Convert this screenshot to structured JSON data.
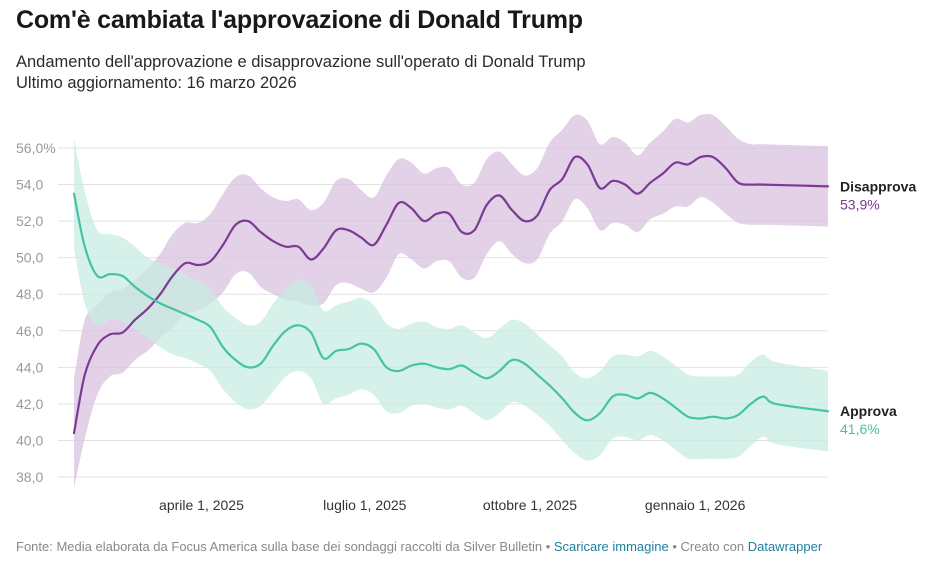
{
  "title": "Com'è cambiata l'approvazione di Donald Trump",
  "subtitle_line1": "Andamento dell'approvazione e disapprovazione sull'operato di Donald Trump",
  "subtitle_line2": "Ultimo aggiornamento: 16 marzo 2026",
  "footer": {
    "source": "Fonte: Media elaborata da Focus America sulla base dei sondaggi raccolti da Silver Bulletin",
    "sep": " • ",
    "download": "Scaricare immagine",
    "created": "Creato con ",
    "tool": "Datawrapper"
  },
  "colors": {
    "disapprove_line": "#7b3a94",
    "disapprove_band": "#d8c0de",
    "approve_line": "#45c3a4",
    "approve_band": "#c6ece1",
    "grid": "#e2e2e2"
  },
  "chart_data": {
    "type": "line",
    "x_type": "date",
    "x_range": [
      "2025-01-20",
      "2026-03-16"
    ],
    "ylim": [
      38,
      56
    ],
    "y_ticks": [
      {
        "value": 38,
        "label": "38,0"
      },
      {
        "value": 40,
        "label": "40,0"
      },
      {
        "value": 42,
        "label": "42,0"
      },
      {
        "value": 44,
        "label": "44,0"
      },
      {
        "value": 46,
        "label": "46,0"
      },
      {
        "value": 48,
        "label": "48,0"
      },
      {
        "value": 50,
        "label": "50,0"
      },
      {
        "value": 52,
        "label": "52,0"
      },
      {
        "value": 54,
        "label": "54,0"
      },
      {
        "value": 56,
        "label": "56,0%"
      }
    ],
    "x_ticks": [
      {
        "date": "2025-04-01",
        "label": "aprile 1, 2025"
      },
      {
        "date": "2025-07-01",
        "label": "luglio 1, 2025"
      },
      {
        "date": "2025-10-01",
        "label": "ottobre 1, 2025"
      },
      {
        "date": "2026-01-01",
        "label": "gennaio 1, 2026"
      }
    ],
    "grid": true,
    "series": [
      {
        "name": "Disapprova",
        "last_label": "53,9%",
        "color": "#7b3a94",
        "band_color": "#d8c0de",
        "points": [
          {
            "date": "2025-01-20",
            "value": 40.4,
            "low": 37.4,
            "high": 43.4
          },
          {
            "date": "2025-01-26",
            "value": 43.6,
            "low": 40.1,
            "high": 46.6
          },
          {
            "date": "2025-02-02",
            "value": 45.2,
            "low": 42.5,
            "high": 47.4
          },
          {
            "date": "2025-02-09",
            "value": 45.8,
            "low": 43.5,
            "high": 48.1
          },
          {
            "date": "2025-02-16",
            "value": 45.9,
            "low": 43.7,
            "high": 48.3
          },
          {
            "date": "2025-02-23",
            "value": 46.6,
            "low": 44.4,
            "high": 48.8
          },
          {
            "date": "2025-03-02",
            "value": 47.2,
            "low": 44.9,
            "high": 49.4
          },
          {
            "date": "2025-03-09",
            "value": 48.0,
            "low": 45.6,
            "high": 50.2
          },
          {
            "date": "2025-03-16",
            "value": 49.0,
            "low": 46.2,
            "high": 51.3
          },
          {
            "date": "2025-03-23",
            "value": 49.7,
            "low": 46.9,
            "high": 51.9
          },
          {
            "date": "2025-03-30",
            "value": 49.6,
            "low": 47.1,
            "high": 51.9
          },
          {
            "date": "2025-04-06",
            "value": 49.8,
            "low": 47.5,
            "high": 52.4
          },
          {
            "date": "2025-04-13",
            "value": 50.7,
            "low": 48.1,
            "high": 53.5
          },
          {
            "date": "2025-04-20",
            "value": 51.8,
            "low": 49.1,
            "high": 54.4
          },
          {
            "date": "2025-04-27",
            "value": 52.0,
            "low": 49.2,
            "high": 54.5
          },
          {
            "date": "2025-05-04",
            "value": 51.4,
            "low": 48.4,
            "high": 53.8
          },
          {
            "date": "2025-05-11",
            "value": 50.9,
            "low": 48.0,
            "high": 53.3
          },
          {
            "date": "2025-05-18",
            "value": 50.6,
            "low": 47.7,
            "high": 53.1
          },
          {
            "date": "2025-05-25",
            "value": 50.6,
            "low": 47.6,
            "high": 53.2
          },
          {
            "date": "2025-06-01",
            "value": 49.9,
            "low": 47.4,
            "high": 52.6
          },
          {
            "date": "2025-06-08",
            "value": 50.5,
            "low": 47.5,
            "high": 53.0
          },
          {
            "date": "2025-06-15",
            "value": 51.5,
            "low": 48.5,
            "high": 54.2
          },
          {
            "date": "2025-06-22",
            "value": 51.5,
            "low": 48.6,
            "high": 54.3
          },
          {
            "date": "2025-06-29",
            "value": 51.1,
            "low": 48.3,
            "high": 53.7
          },
          {
            "date": "2025-07-06",
            "value": 50.7,
            "low": 48.1,
            "high": 53.3
          },
          {
            "date": "2025-07-13",
            "value": 51.8,
            "low": 48.9,
            "high": 54.5
          },
          {
            "date": "2025-07-20",
            "value": 53.0,
            "low": 50.2,
            "high": 55.4
          },
          {
            "date": "2025-07-27",
            "value": 52.7,
            "low": 49.9,
            "high": 55.2
          },
          {
            "date": "2025-08-03",
            "value": 52.0,
            "low": 49.4,
            "high": 54.6
          },
          {
            "date": "2025-08-10",
            "value": 52.4,
            "low": 49.8,
            "high": 54.9
          },
          {
            "date": "2025-08-17",
            "value": 52.4,
            "low": 49.8,
            "high": 54.9
          },
          {
            "date": "2025-08-24",
            "value": 51.4,
            "low": 48.9,
            "high": 54.0
          },
          {
            "date": "2025-08-31",
            "value": 51.5,
            "low": 48.9,
            "high": 54.1
          },
          {
            "date": "2025-09-07",
            "value": 52.9,
            "low": 50.2,
            "high": 55.4
          },
          {
            "date": "2025-09-14",
            "value": 53.4,
            "low": 50.9,
            "high": 55.8
          },
          {
            "date": "2025-09-21",
            "value": 52.6,
            "low": 50.2,
            "high": 55.1
          },
          {
            "date": "2025-09-28",
            "value": 52.0,
            "low": 49.7,
            "high": 54.5
          },
          {
            "date": "2025-10-05",
            "value": 52.3,
            "low": 49.9,
            "high": 54.9
          },
          {
            "date": "2025-10-12",
            "value": 53.7,
            "low": 51.3,
            "high": 56.3
          },
          {
            "date": "2025-10-19",
            "value": 54.3,
            "low": 52.0,
            "high": 57.0
          },
          {
            "date": "2025-10-26",
            "value": 55.5,
            "low": 53.2,
            "high": 57.8
          },
          {
            "date": "2025-11-02",
            "value": 55.1,
            "low": 52.7,
            "high": 57.5
          },
          {
            "date": "2025-11-09",
            "value": 53.8,
            "low": 51.5,
            "high": 56.2
          },
          {
            "date": "2025-11-16",
            "value": 54.2,
            "low": 51.9,
            "high": 56.6
          },
          {
            "date": "2025-11-23",
            "value": 54.0,
            "low": 51.8,
            "high": 56.3
          },
          {
            "date": "2025-11-30",
            "value": 53.5,
            "low": 51.4,
            "high": 55.6
          },
          {
            "date": "2025-12-07",
            "value": 54.1,
            "low": 52.1,
            "high": 56.3
          },
          {
            "date": "2025-12-14",
            "value": 54.6,
            "low": 52.4,
            "high": 56.9
          },
          {
            "date": "2025-12-21",
            "value": 55.2,
            "low": 52.8,
            "high": 57.6
          },
          {
            "date": "2025-12-28",
            "value": 55.1,
            "low": 52.8,
            "high": 57.4
          },
          {
            "date": "2026-01-04",
            "value": 55.5,
            "low": 53.3,
            "high": 57.8
          },
          {
            "date": "2026-01-11",
            "value": 55.5,
            "low": 53.0,
            "high": 57.8
          },
          {
            "date": "2026-01-18",
            "value": 54.9,
            "low": 52.4,
            "high": 57.2
          },
          {
            "date": "2026-01-25",
            "value": 54.1,
            "low": 51.9,
            "high": 56.5
          },
          {
            "date": "2026-02-01",
            "value": 54.0,
            "low": 51.8,
            "high": 56.2
          },
          {
            "date": "2026-02-08",
            "value": 54.0,
            "low": 51.8,
            "high": 56.2
          },
          {
            "date": "2026-03-16",
            "value": 53.9,
            "low": 51.7,
            "high": 56.1
          }
        ]
      },
      {
        "name": "Approva",
        "last_label": "41,6%",
        "color": "#45c3a4",
        "band_color": "#c6ece1",
        "points": [
          {
            "date": "2025-01-20",
            "value": 53.5,
            "low": 50.5,
            "high": 56.5
          },
          {
            "date": "2025-01-26",
            "value": 50.6,
            "low": 47.5,
            "high": 53.6
          },
          {
            "date": "2025-02-02",
            "value": 49.0,
            "low": 46.3,
            "high": 51.5
          },
          {
            "date": "2025-02-09",
            "value": 49.1,
            "low": 46.6,
            "high": 51.3
          },
          {
            "date": "2025-02-16",
            "value": 49.0,
            "low": 46.5,
            "high": 51.1
          },
          {
            "date": "2025-02-23",
            "value": 48.4,
            "low": 46.1,
            "high": 50.6
          },
          {
            "date": "2025-03-02",
            "value": 47.9,
            "low": 45.6,
            "high": 50.0
          },
          {
            "date": "2025-03-09",
            "value": 47.5,
            "low": 45.1,
            "high": 49.7
          },
          {
            "date": "2025-03-16",
            "value": 47.2,
            "low": 44.7,
            "high": 49.4
          },
          {
            "date": "2025-03-23",
            "value": 46.9,
            "low": 44.5,
            "high": 49.1
          },
          {
            "date": "2025-03-30",
            "value": 46.6,
            "low": 44.2,
            "high": 48.7
          },
          {
            "date": "2025-04-06",
            "value": 46.2,
            "low": 43.8,
            "high": 48.3
          },
          {
            "date": "2025-04-13",
            "value": 45.1,
            "low": 42.8,
            "high": 47.3
          },
          {
            "date": "2025-04-20",
            "value": 44.4,
            "low": 42.1,
            "high": 46.7
          },
          {
            "date": "2025-04-27",
            "value": 44.0,
            "low": 41.7,
            "high": 46.3
          },
          {
            "date": "2025-05-04",
            "value": 44.2,
            "low": 41.9,
            "high": 46.5
          },
          {
            "date": "2025-05-11",
            "value": 45.2,
            "low": 42.7,
            "high": 47.5
          },
          {
            "date": "2025-05-18",
            "value": 46.0,
            "low": 43.5,
            "high": 48.3
          },
          {
            "date": "2025-05-25",
            "value": 46.3,
            "low": 43.8,
            "high": 48.8
          },
          {
            "date": "2025-06-01",
            "value": 45.9,
            "low": 43.4,
            "high": 48.5
          },
          {
            "date": "2025-06-08",
            "value": 44.5,
            "low": 42.0,
            "high": 47.1
          },
          {
            "date": "2025-06-15",
            "value": 44.9,
            "low": 42.3,
            "high": 47.4
          },
          {
            "date": "2025-06-22",
            "value": 45.0,
            "low": 42.5,
            "high": 47.6
          },
          {
            "date": "2025-06-29",
            "value": 45.3,
            "low": 42.8,
            "high": 47.8
          },
          {
            "date": "2025-07-06",
            "value": 45.0,
            "low": 42.5,
            "high": 47.4
          },
          {
            "date": "2025-07-13",
            "value": 44.0,
            "low": 41.6,
            "high": 46.4
          },
          {
            "date": "2025-07-20",
            "value": 43.8,
            "low": 41.5,
            "high": 46.1
          },
          {
            "date": "2025-07-27",
            "value": 44.1,
            "low": 41.9,
            "high": 46.4
          },
          {
            "date": "2025-08-03",
            "value": 44.2,
            "low": 42.0,
            "high": 46.5
          },
          {
            "date": "2025-08-10",
            "value": 44.0,
            "low": 41.8,
            "high": 46.2
          },
          {
            "date": "2025-08-17",
            "value": 43.9,
            "low": 41.7,
            "high": 46.1
          },
          {
            "date": "2025-08-24",
            "value": 44.1,
            "low": 41.9,
            "high": 46.3
          },
          {
            "date": "2025-08-31",
            "value": 43.7,
            "low": 41.5,
            "high": 45.9
          },
          {
            "date": "2025-09-07",
            "value": 43.4,
            "low": 41.1,
            "high": 45.6
          },
          {
            "date": "2025-09-14",
            "value": 43.8,
            "low": 41.5,
            "high": 46.1
          },
          {
            "date": "2025-09-21",
            "value": 44.4,
            "low": 42.1,
            "high": 46.6
          },
          {
            "date": "2025-09-28",
            "value": 44.2,
            "low": 41.9,
            "high": 46.4
          },
          {
            "date": "2025-10-05",
            "value": 43.6,
            "low": 41.4,
            "high": 45.8
          },
          {
            "date": "2025-10-12",
            "value": 43.0,
            "low": 40.8,
            "high": 45.2
          },
          {
            "date": "2025-10-19",
            "value": 42.3,
            "low": 40.0,
            "high": 44.6
          },
          {
            "date": "2025-10-26",
            "value": 41.5,
            "low": 39.3,
            "high": 43.7
          },
          {
            "date": "2025-11-02",
            "value": 41.1,
            "low": 38.9,
            "high": 43.4
          },
          {
            "date": "2025-11-09",
            "value": 41.5,
            "low": 39.2,
            "high": 43.8
          },
          {
            "date": "2025-11-16",
            "value": 42.4,
            "low": 40.1,
            "high": 44.6
          },
          {
            "date": "2025-11-23",
            "value": 42.5,
            "low": 40.2,
            "high": 44.7
          },
          {
            "date": "2025-11-30",
            "value": 42.3,
            "low": 40.0,
            "high": 44.6
          },
          {
            "date": "2025-12-07",
            "value": 42.6,
            "low": 40.3,
            "high": 44.9
          },
          {
            "date": "2025-12-14",
            "value": 42.3,
            "low": 40.0,
            "high": 44.6
          },
          {
            "date": "2025-12-21",
            "value": 41.8,
            "low": 39.5,
            "high": 44.1
          },
          {
            "date": "2025-12-28",
            "value": 41.3,
            "low": 39.0,
            "high": 43.6
          },
          {
            "date": "2026-01-04",
            "value": 41.2,
            "low": 39.0,
            "high": 43.5
          },
          {
            "date": "2026-01-11",
            "value": 41.3,
            "low": 39.0,
            "high": 43.5
          },
          {
            "date": "2026-01-18",
            "value": 41.2,
            "low": 39.0,
            "high": 43.5
          },
          {
            "date": "2026-01-25",
            "value": 41.4,
            "low": 39.1,
            "high": 43.6
          },
          {
            "date": "2026-02-01",
            "value": 42.0,
            "low": 39.7,
            "high": 44.3
          },
          {
            "date": "2026-02-08",
            "value": 42.4,
            "low": 40.2,
            "high": 44.7
          },
          {
            "date": "2026-02-15",
            "value": 42.0,
            "low": 39.8,
            "high": 44.3
          },
          {
            "date": "2026-03-16",
            "value": 41.6,
            "low": 39.4,
            "high": 43.8
          }
        ]
      }
    ]
  }
}
